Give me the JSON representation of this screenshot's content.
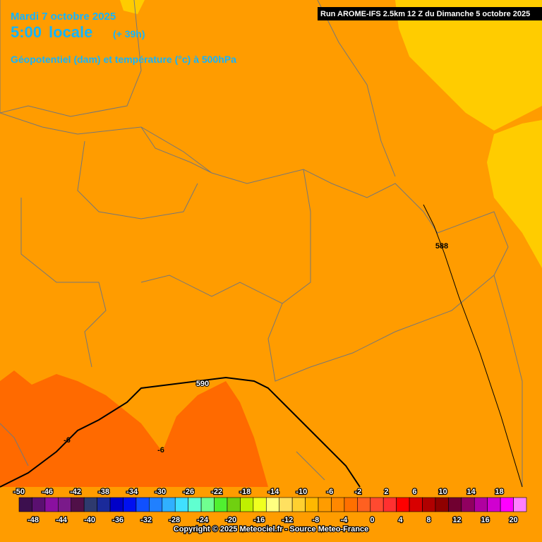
{
  "header": {
    "date": "Mardi 7 octobre 2025",
    "time": "5:00",
    "time_suffix": "locale",
    "lead": "(+ 39h)",
    "subtitle": "Géopotentiel (dam) et température (°c) à 500hPa",
    "run": "Run AROME-IFS 2.5km 12 Z du Dimanche 5 octobre 2025"
  },
  "map_labels": [
    588,
    590,
    -6,
    -6
  ],
  "legend": {
    "top_labels": [
      -50,
      -46,
      -42,
      -38,
      -34,
      -30,
      -26,
      -22,
      -18,
      -14,
      -10,
      -6,
      -2,
      2,
      6,
      10,
      14,
      18
    ],
    "bottom_labels": [
      -48,
      -44,
      -40,
      -36,
      -32,
      -28,
      -24,
      -20,
      -16,
      -12,
      -8,
      -4,
      0,
      4,
      8,
      12,
      16,
      20
    ],
    "colors": [
      "#3c0f4e",
      "#5a1070",
      "#8a10a0",
      "#7a1a8a",
      "#501048",
      "#2e3a6e",
      "#1a2a9a",
      "#0000c8",
      "#0010f0",
      "#1050ff",
      "#2080ff",
      "#30b0ff",
      "#40e0ff",
      "#60ffd0",
      "#70ff90",
      "#50f030",
      "#70d010",
      "#c0f000",
      "#f0ff20",
      "#ffff80",
      "#ffe060",
      "#ffd030",
      "#ffb800",
      "#ff9c00",
      "#ff8800",
      "#ff7000",
      "#ff6020",
      "#ff4a30",
      "#ff3030",
      "#ff0000",
      "#d80000",
      "#b00000",
      "#900000",
      "#700030",
      "#900060",
      "#b000a0",
      "#d000d0",
      "#ff00ff",
      "#ff80ff"
    ]
  },
  "copyright": "Copyright © 2025 Meteociel.fr - Source Meteo-France"
}
